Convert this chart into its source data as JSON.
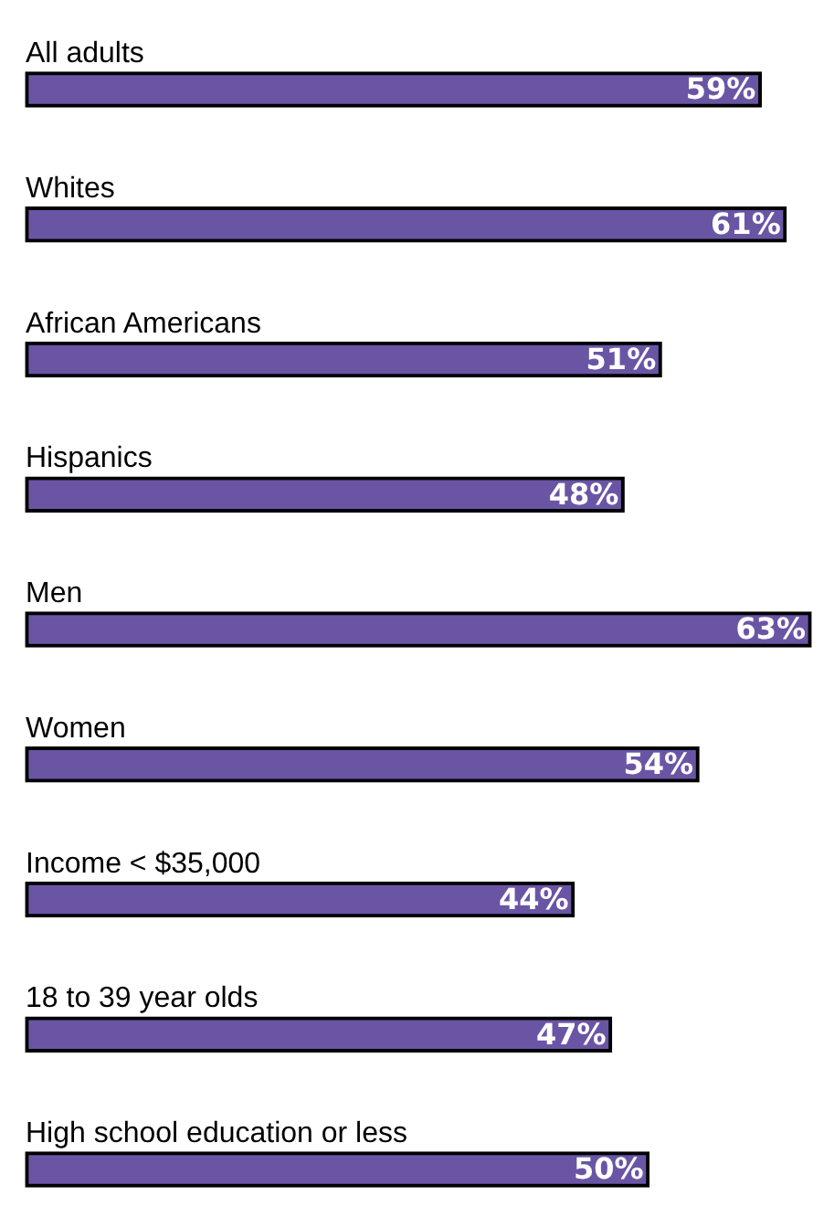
{
  "chart_data": {
    "type": "bar",
    "orientation": "horizontal",
    "categories": [
      "All adults",
      "Whites",
      "African Americans",
      "Hispanics",
      "Men",
      "Women",
      "Income < $35,000",
      "18 to 39 year olds",
      "High school education or less"
    ],
    "values": [
      59,
      61,
      51,
      48,
      63,
      54,
      44,
      47,
      50
    ],
    "value_labels": [
      "59%",
      "61%",
      "51%",
      "48%",
      "63%",
      "54%",
      "44%",
      "47%",
      "50%"
    ],
    "color": "#6a55a5"
  }
}
